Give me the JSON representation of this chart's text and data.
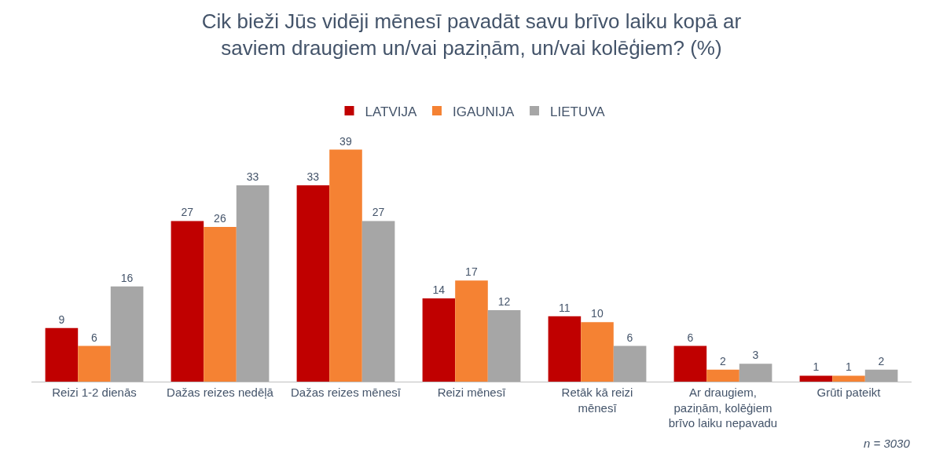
{
  "chart_data": {
    "type": "bar",
    "title": "Cik bieži Jūs vidēji mēnesī pavadāt savu brīvo laiku kopā ar saviem draugiem un/vai paziņām, un/vai kolēģiem? (%)",
    "categories": [
      "Reizi 1-2 dienās",
      "Dažas reizes nedēļā",
      "Dažas reizes mēnesī",
      "Reizi mēnesī",
      "Retāk kā reizi mēnesī",
      "Ar draugiem, paziņām, kolēģiem brīvo laiku nepavadu",
      "Grūti pateikt"
    ],
    "series": [
      {
        "name": "LATVIJA",
        "color": "#c00000",
        "values": [
          9,
          27,
          33,
          14,
          11,
          6,
          1
        ]
      },
      {
        "name": "IGAUNIJA",
        "color": "#f58233",
        "values": [
          6,
          26,
          39,
          17,
          10,
          2,
          1
        ]
      },
      {
        "name": "LIETUVA",
        "color": "#a6a6a6",
        "values": [
          16,
          33,
          27,
          12,
          6,
          3,
          2
        ]
      }
    ],
    "data_labels": true,
    "legend": "top",
    "grid": false,
    "annotations": [
      "n = 3030"
    ]
  }
}
